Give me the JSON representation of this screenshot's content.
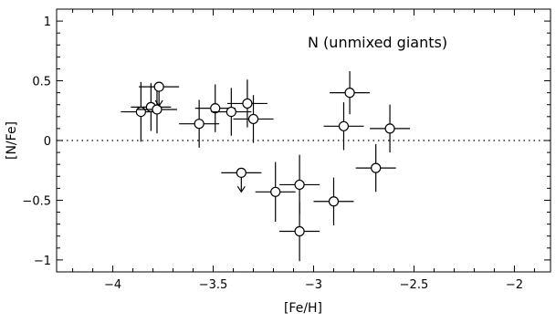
{
  "chart_data": {
    "type": "scatter",
    "title": "",
    "annotation": "N (unmixed giants)",
    "xlabel": "[Fe/H]",
    "ylabel": "[N/Fe]",
    "xlim": [
      -4.28,
      -1.82
    ],
    "ylim": [
      -1.1,
      1.1
    ],
    "xticks": [
      -4,
      -3.5,
      -3,
      -2.5,
      -2
    ],
    "xtick_labels": [
      "−4",
      "−3.5",
      "−3",
      "−2.5",
      "−2"
    ],
    "yticks": [
      -1,
      -0.5,
      0,
      0.5,
      1
    ],
    "ytick_labels": [
      "−1",
      "−0.5",
      "0",
      "0.5",
      "1"
    ],
    "reference_line": {
      "y": 0,
      "style": "dotted"
    },
    "grid": false,
    "points": [
      {
        "x": -3.86,
        "y": 0.24,
        "xerr": 0.1,
        "yerr": 0.25,
        "upper_limit": false
      },
      {
        "x": -3.81,
        "y": 0.28,
        "xerr": 0.1,
        "yerr": 0.2,
        "upper_limit": false
      },
      {
        "x": -3.78,
        "y": 0.26,
        "xerr": 0.1,
        "yerr": 0.2,
        "upper_limit": false
      },
      {
        "x": -3.77,
        "y": 0.45,
        "xerr": 0.1,
        "yerr": 0.0,
        "upper_limit": true
      },
      {
        "x": -3.57,
        "y": 0.14,
        "xerr": 0.1,
        "yerr": 0.2,
        "upper_limit": false
      },
      {
        "x": -3.49,
        "y": 0.27,
        "xerr": 0.1,
        "yerr": 0.2,
        "upper_limit": false
      },
      {
        "x": -3.41,
        "y": 0.24,
        "xerr": 0.1,
        "yerr": 0.2,
        "upper_limit": false
      },
      {
        "x": -3.33,
        "y": 0.31,
        "xerr": 0.1,
        "yerr": 0.2,
        "upper_limit": false
      },
      {
        "x": -3.3,
        "y": 0.18,
        "xerr": 0.1,
        "yerr": 0.2,
        "upper_limit": false
      },
      {
        "x": -3.36,
        "y": -0.27,
        "xerr": 0.1,
        "yerr": 0.0,
        "upper_limit": true
      },
      {
        "x": -3.19,
        "y": -0.43,
        "xerr": 0.1,
        "yerr": 0.25,
        "upper_limit": false
      },
      {
        "x": -3.07,
        "y": -0.37,
        "xerr": 0.1,
        "yerr": 0.25,
        "upper_limit": false
      },
      {
        "x": -3.07,
        "y": -0.76,
        "xerr": 0.1,
        "yerr": 0.25,
        "upper_limit": false
      },
      {
        "x": -2.9,
        "y": -0.51,
        "xerr": 0.1,
        "yerr": 0.2,
        "upper_limit": false
      },
      {
        "x": -2.85,
        "y": 0.12,
        "xerr": 0.1,
        "yerr": 0.2,
        "upper_limit": false
      },
      {
        "x": -2.82,
        "y": 0.4,
        "xerr": 0.1,
        "yerr": 0.18,
        "upper_limit": false
      },
      {
        "x": -2.69,
        "y": -0.23,
        "xerr": 0.1,
        "yerr": 0.2,
        "upper_limit": false
      },
      {
        "x": -2.62,
        "y": 0.1,
        "xerr": 0.1,
        "yerr": 0.2,
        "upper_limit": false
      }
    ]
  }
}
